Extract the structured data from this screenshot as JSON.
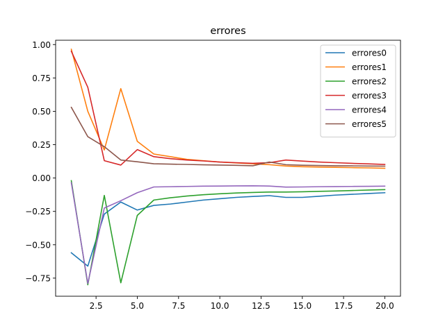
{
  "chart_data": {
    "type": "line",
    "title": "errores",
    "xlabel": "",
    "ylabel": "",
    "xlim": [
      0.05,
      20.95
    ],
    "ylim": [
      -0.8857,
      1.0325
    ],
    "xticks": [
      2.5,
      5.0,
      7.5,
      10.0,
      12.5,
      15.0,
      17.5,
      20.0
    ],
    "xtick_labels": [
      "2.5",
      "5.0",
      "7.5",
      "10.0",
      "12.5",
      "15.0",
      "17.5",
      "20.0"
    ],
    "yticks": [
      -0.75,
      -0.5,
      -0.25,
      0.0,
      0.25,
      0.5,
      0.75,
      1.0
    ],
    "ytick_labels": [
      "−0.75",
      "−0.50",
      "−0.25",
      "0.00",
      "0.25",
      "0.50",
      "0.75",
      "1.00"
    ],
    "grid": false,
    "legend_position": "top-right",
    "x": [
      1,
      2,
      3,
      4,
      5,
      6,
      7,
      8,
      9,
      10,
      11,
      12,
      13,
      14,
      15,
      16,
      17,
      18,
      19,
      20
    ],
    "series": [
      {
        "name": "errores0",
        "color": "#1f77b4",
        "values": [
          -0.56,
          -0.66,
          -0.27,
          -0.18,
          -0.24,
          -0.205,
          -0.195,
          -0.18,
          -0.165,
          -0.155,
          -0.145,
          -0.138,
          -0.132,
          -0.145,
          -0.145,
          -0.137,
          -0.128,
          -0.122,
          -0.116,
          -0.11
        ]
      },
      {
        "name": "errores1",
        "color": "#ff7f0e",
        "values": [
          0.965,
          0.5,
          0.21,
          0.67,
          0.275,
          0.18,
          0.16,
          0.14,
          0.13,
          0.12,
          0.113,
          0.107,
          0.1,
          0.09,
          0.085,
          0.082,
          0.08,
          0.078,
          0.076,
          0.073
        ]
      },
      {
        "name": "errores2",
        "color": "#2ca02c",
        "values": [
          -0.02,
          -0.8,
          -0.13,
          -0.785,
          -0.28,
          -0.165,
          -0.148,
          -0.135,
          -0.125,
          -0.118,
          -0.112,
          -0.108,
          -0.105,
          -0.105,
          -0.103,
          -0.1,
          -0.097,
          -0.094,
          -0.09,
          -0.087
        ]
      },
      {
        "name": "errores3",
        "color": "#d62728",
        "values": [
          0.95,
          0.68,
          0.13,
          0.097,
          0.213,
          0.16,
          0.145,
          0.135,
          0.128,
          0.12,
          0.115,
          0.11,
          0.115,
          0.135,
          0.127,
          0.12,
          0.115,
          0.11,
          0.106,
          0.102
        ]
      },
      {
        "name": "errores4",
        "color": "#9467bd",
        "values": [
          -0.035,
          -0.79,
          -0.225,
          -0.17,
          -0.11,
          -0.067,
          -0.065,
          -0.063,
          -0.061,
          -0.06,
          -0.059,
          -0.058,
          -0.06,
          -0.068,
          -0.067,
          -0.065,
          -0.064,
          -0.063,
          -0.062,
          -0.061
        ]
      },
      {
        "name": "errores5",
        "color": "#8c564b",
        "values": [
          0.53,
          0.31,
          0.235,
          0.135,
          0.122,
          0.107,
          0.104,
          0.102,
          0.099,
          0.097,
          0.095,
          0.092,
          0.12,
          0.1,
          0.096,
          0.094,
          0.092,
          0.091,
          0.09,
          0.089
        ]
      }
    ]
  }
}
